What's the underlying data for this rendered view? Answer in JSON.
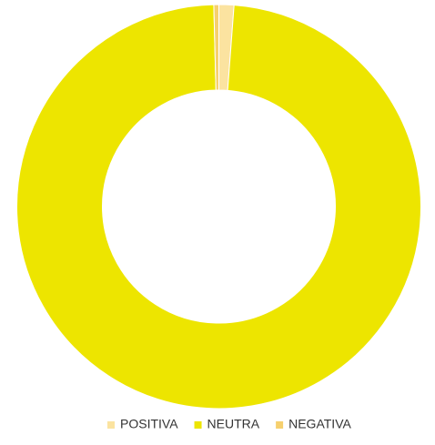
{
  "chart_data": {
    "type": "donut",
    "categories": [
      "POSITIVA",
      "NEUTRA",
      "NEGATIVA"
    ],
    "values": [
      1.2,
      98.4,
      0.4
    ],
    "colors": [
      "#fbe3a0",
      "#ede500",
      "#f6d06e"
    ],
    "legend": "bottom"
  }
}
